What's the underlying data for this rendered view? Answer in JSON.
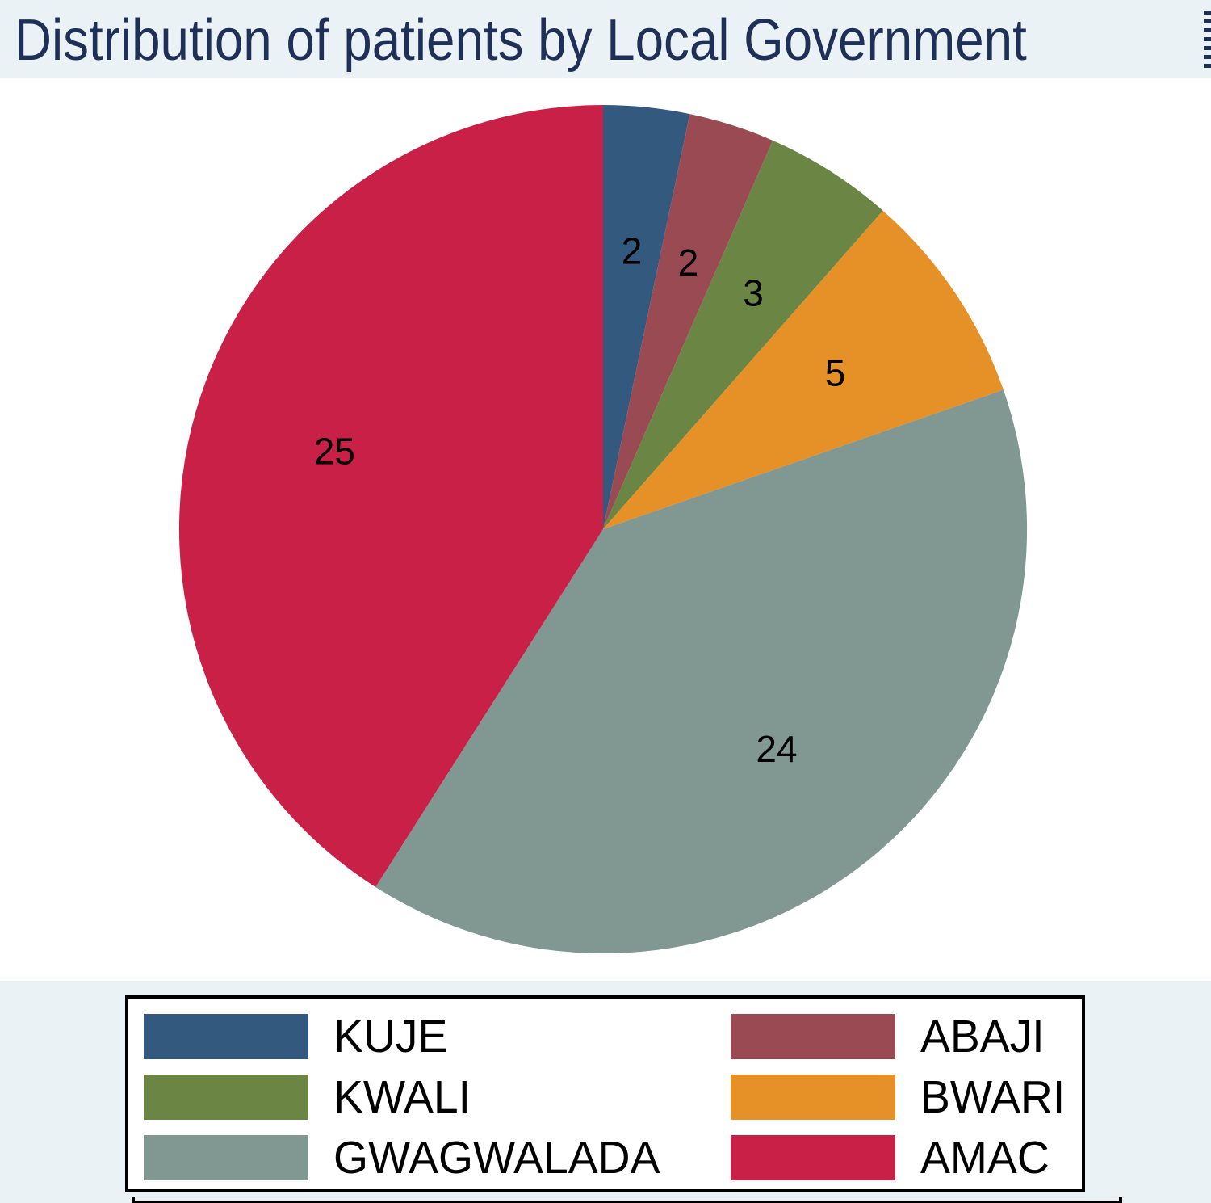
{
  "title": "Distribution of patients by Local Government",
  "colors": {
    "background_band": "#EAF2F6",
    "plot_background": "#FFFFFF",
    "title_text": "#1E3057",
    "legend_border": "#000000",
    "slice_label_text": "#000000"
  },
  "chart_data": {
    "type": "pie",
    "title": "Distribution of patients by Local Government",
    "categories": [
      "KUJE",
      "ABAJI",
      "KWALI",
      "BWARI",
      "GWAGWALADA",
      "AMAC"
    ],
    "values": [
      2,
      2,
      3,
      5,
      24,
      25
    ],
    "slice_labels": [
      "2",
      "2",
      "3",
      "5",
      "24",
      "25"
    ],
    "colors": [
      "#33597E",
      "#9A4A52",
      "#6B8545",
      "#E69128",
      "#809891",
      "#C92048"
    ],
    "start_position": "12-o-clock",
    "direction": "clockwise",
    "legend_position": "bottom",
    "grid": false
  },
  "legend": {
    "columns": [
      {
        "entries": [
          {
            "label": "KUJE",
            "color": "#33597E"
          },
          {
            "label": "KWALI",
            "color": "#6B8545"
          },
          {
            "label": "GWAGWALADA",
            "color": "#809891"
          }
        ]
      },
      {
        "entries": [
          {
            "label": "ABAJI",
            "color": "#9A4A52"
          },
          {
            "label": "BWARI",
            "color": "#E69128"
          },
          {
            "label": "AMAC",
            "color": "#C92048"
          }
        ]
      }
    ]
  }
}
